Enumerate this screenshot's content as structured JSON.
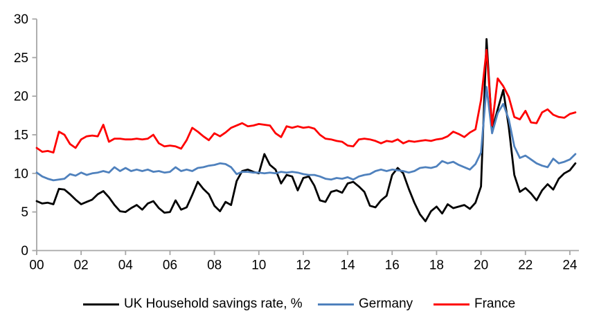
{
  "chart_data": {
    "type": "line",
    "title": "",
    "xlabel": "",
    "ylabel": "",
    "grid": false,
    "legend_position": "bottom",
    "axis_color": "#a6a6a6",
    "text_color": "#000000",
    "ylim": [
      0,
      30
    ],
    "y_ticks": [
      0,
      5,
      10,
      15,
      20,
      25,
      30
    ],
    "y_tick_labels": [
      "0",
      "5",
      "10",
      "15",
      "20",
      "25",
      "30"
    ],
    "x_start_year": 2000,
    "x_step_years": 0.25,
    "x_end_year": 2024.25,
    "x_ticks": [
      2000,
      2002,
      2004,
      2006,
      2008,
      2010,
      2012,
      2014,
      2016,
      2018,
      2020,
      2022,
      2024
    ],
    "x_tick_labels": [
      "00",
      "02",
      "04",
      "06",
      "08",
      "10",
      "12",
      "14",
      "16",
      "18",
      "20",
      "22",
      "24"
    ],
    "series": [
      {
        "name": "UK Household savings rate, %",
        "color": "#000000",
        "values": [
          6.4,
          6.1,
          6.2,
          6.0,
          8.0,
          7.9,
          7.3,
          6.6,
          6.0,
          6.3,
          6.6,
          7.3,
          7.7,
          6.9,
          5.9,
          5.1,
          5.0,
          5.5,
          5.9,
          5.3,
          6.1,
          6.4,
          5.5,
          4.9,
          5.0,
          6.5,
          5.3,
          5.6,
          7.2,
          8.9,
          8.0,
          7.3,
          5.8,
          5.1,
          6.3,
          5.9,
          9.0,
          10.3,
          10.5,
          10.2,
          10.0,
          12.5,
          11.1,
          10.5,
          8.7,
          9.8,
          9.6,
          7.8,
          9.4,
          9.6,
          8.4,
          6.5,
          6.3,
          7.6,
          7.8,
          7.5,
          8.7,
          8.9,
          8.3,
          7.6,
          5.8,
          5.6,
          6.5,
          7.1,
          9.8,
          10.7,
          10.0,
          8.0,
          6.2,
          4.7,
          3.8,
          5.1,
          5.7,
          4.8,
          6.0,
          5.5,
          5.7,
          5.9,
          5.4,
          6.2,
          8.3,
          27.4,
          15.6,
          18.3,
          20.8,
          16.0,
          9.8,
          7.6,
          8.1,
          7.4,
          6.5,
          7.8,
          8.6,
          7.9,
          9.3,
          10.0,
          10.4,
          11.3
        ]
      },
      {
        "name": "Germany",
        "color": "#4f81bd",
        "values": [
          10.1,
          9.6,
          9.3,
          9.1,
          9.2,
          9.3,
          9.9,
          9.7,
          10.1,
          9.8,
          10.0,
          10.1,
          10.3,
          10.1,
          10.8,
          10.3,
          10.7,
          10.3,
          10.5,
          10.3,
          10.5,
          10.2,
          10.3,
          10.1,
          10.2,
          10.8,
          10.3,
          10.5,
          10.3,
          10.7,
          10.8,
          11.0,
          11.1,
          11.3,
          11.2,
          10.8,
          9.9,
          10.2,
          10.2,
          10.1,
          10.1,
          10.0,
          10.1,
          10.0,
          10.2,
          10.1,
          10.2,
          10.1,
          9.9,
          9.8,
          9.8,
          9.6,
          9.3,
          9.2,
          9.4,
          9.3,
          9.5,
          9.2,
          9.6,
          9.8,
          9.9,
          10.3,
          10.5,
          10.3,
          10.5,
          10.4,
          10.3,
          10.1,
          10.3,
          10.7,
          10.8,
          10.7,
          10.9,
          11.6,
          11.3,
          11.5,
          11.1,
          10.8,
          10.5,
          11.2,
          12.7,
          21.2,
          15.2,
          17.8,
          19.0,
          17.0,
          13.5,
          12.0,
          12.3,
          11.8,
          11.3,
          11.0,
          10.8,
          11.9,
          11.3,
          11.5,
          11.8,
          12.5
        ]
      },
      {
        "name": "France",
        "color": "#fe0000",
        "values": [
          13.3,
          12.8,
          12.9,
          12.7,
          15.4,
          15.0,
          13.8,
          13.3,
          14.4,
          14.8,
          14.9,
          14.8,
          16.3,
          14.1,
          14.5,
          14.5,
          14.4,
          14.4,
          14.5,
          14.4,
          14.5,
          15.0,
          13.9,
          13.5,
          13.6,
          13.5,
          13.2,
          14.3,
          15.9,
          15.4,
          14.8,
          14.3,
          15.2,
          14.8,
          15.3,
          15.9,
          16.2,
          16.5,
          16.1,
          16.2,
          16.4,
          16.3,
          16.2,
          15.2,
          14.7,
          16.1,
          15.9,
          16.1,
          15.9,
          16.0,
          15.8,
          15.0,
          14.5,
          14.4,
          14.2,
          14.1,
          13.6,
          13.5,
          14.4,
          14.5,
          14.4,
          14.2,
          13.9,
          14.2,
          14.1,
          14.4,
          13.9,
          14.2,
          14.1,
          14.2,
          14.3,
          14.2,
          14.4,
          14.5,
          14.8,
          15.4,
          15.1,
          14.7,
          15.3,
          15.7,
          19.5,
          26.0,
          16.2,
          22.3,
          21.3,
          19.9,
          17.3,
          17.0,
          18.1,
          16.6,
          16.5,
          17.9,
          18.3,
          17.6,
          17.3,
          17.2,
          17.7,
          17.9
        ]
      }
    ]
  },
  "legend": {
    "uk_label": "UK Household savings rate, %",
    "germany_label": "Germany",
    "france_label": "France"
  }
}
